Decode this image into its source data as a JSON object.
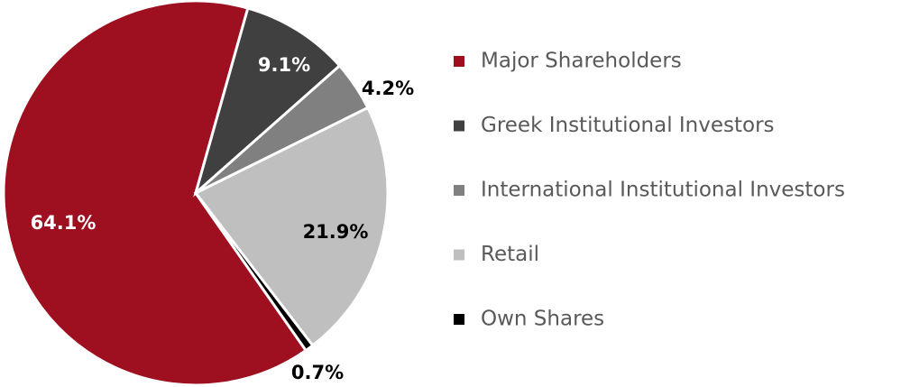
{
  "chart_data": {
    "type": "pie",
    "categories": [
      "Major Shareholders",
      "Greek Institutional Investors",
      "International Institutional Investors",
      "Retail",
      "Own Shares"
    ],
    "values": [
      64.1,
      9.1,
      4.2,
      21.9,
      0.7
    ],
    "value_labels": [
      "64.1%",
      "9.1%",
      "4.2%",
      "21.9%",
      "0.7%"
    ],
    "colors": [
      "#9e1020",
      "#404040",
      "#808080",
      "#bfbfbf",
      "#000000"
    ],
    "legend": "right"
  }
}
